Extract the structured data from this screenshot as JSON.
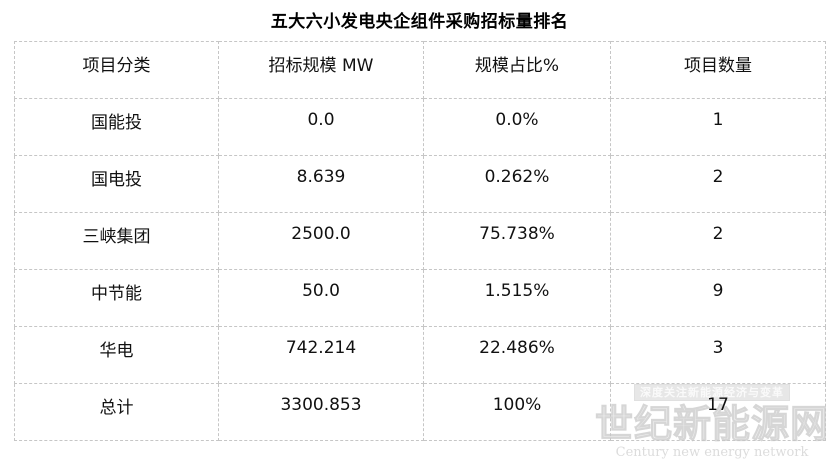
{
  "chart_data": {
    "type": "table",
    "title": "五大六小发电央企组件采购招标量排名",
    "columns": [
      "项目分类",
      "招标规模 MW",
      "规模占比%",
      "项目数量"
    ],
    "rows": [
      [
        "国能投",
        "0.0",
        "0.0%",
        "1"
      ],
      [
        "国电投",
        "8.639",
        "0.262%",
        "2"
      ],
      [
        "三峡集团",
        "2500.0",
        "75.738%",
        "2"
      ],
      [
        "中节能",
        "50.0",
        "1.515%",
        "9"
      ],
      [
        "华电",
        "742.214",
        "22.486%",
        "3"
      ],
      [
        "总计",
        "3300.853",
        "100%",
        "17"
      ]
    ]
  },
  "watermark": {
    "slogan": "深度关注新能源经济与变革",
    "name": "世纪新能源网",
    "subtitle": "Century new energy network"
  },
  "colors": {
    "background": "#ffffff",
    "text": "#111111",
    "table_border": "#c6c6c6",
    "watermark": "#dcdcdc"
  }
}
